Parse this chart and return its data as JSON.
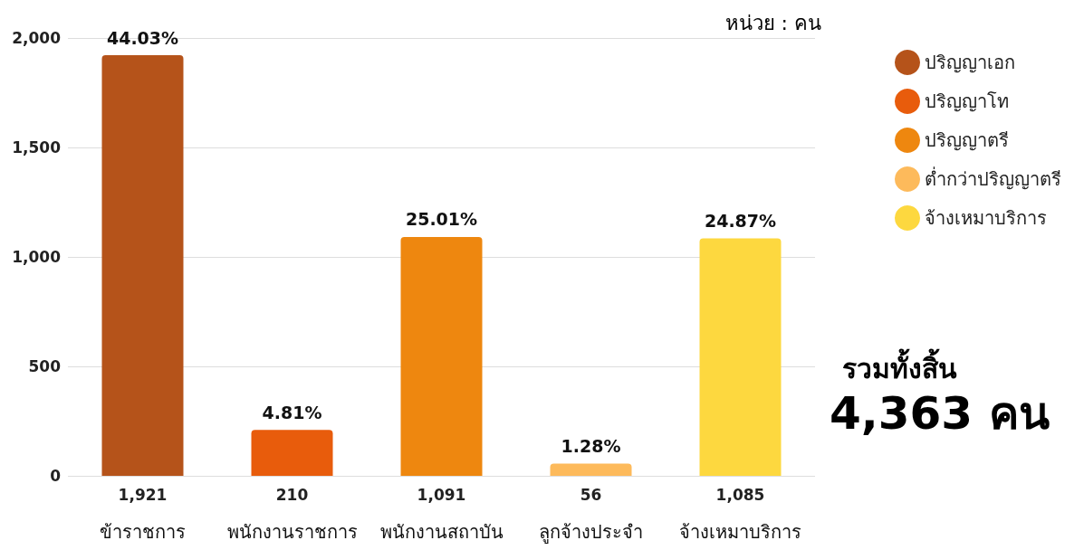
{
  "chart_data": {
    "type": "bar",
    "stacked": true,
    "categories": [
      "ข้าราชการ",
      "พนักงานราชการ",
      "พนักงานสถาบัน",
      "ลูกจ้างประจำ",
      "จ้างเหมาบริการ"
    ],
    "series": [
      {
        "name": "ปริญญาเอก",
        "color": "#b5531a",
        "values": [
          1921,
          null,
          null,
          null,
          null
        ],
        "value_labels": [
          "1,921",
          null,
          null,
          null,
          null
        ]
      },
      {
        "name": "ปริญญาโท",
        "color": "#e85c0c",
        "values": [
          null,
          210,
          null,
          null,
          null
        ],
        "value_labels": [
          null,
          "210",
          null,
          null,
          null
        ]
      },
      {
        "name": "ปริญญาตรี",
        "color": "#ee870f",
        "values": [
          null,
          null,
          1091,
          null,
          null
        ],
        "value_labels": [
          null,
          null,
          "1,091",
          null,
          null
        ]
      },
      {
        "name": "ต่ำกว่าปริญญาตรี",
        "color": "#fdba5b",
        "values": [
          null,
          null,
          null,
          56,
          null
        ],
        "value_labels": [
          null,
          null,
          null,
          "56",
          null
        ]
      },
      {
        "name": "จ้างเหมาบริการ",
        "color": "#fdd83f",
        "values": [
          null,
          null,
          null,
          null,
          1085
        ],
        "value_labels": [
          null,
          null,
          null,
          null,
          "1,085"
        ]
      }
    ],
    "ylim": [
      0,
      2000
    ],
    "yticks": [
      0,
      500,
      {
        "value": 1000,
        "label": "1,000"
      },
      {
        "value": 1500,
        "label": "1,500"
      },
      {
        "value": 2000,
        "label": "2,000"
      }
    ],
    "grid": "y",
    "legend": "right",
    "annotations": [
      {
        "text": "44.03%",
        "x": "ข้าราชการ",
        "y": 1921
      },
      {
        "text": "4.81%",
        "x": "พนักงานราชการ",
        "y": 210
      },
      {
        "text": "25.01%",
        "x": "พนักงานสถาบัน",
        "y": 1091
      },
      {
        "text": "1.28%",
        "x": "ลูกจ้างประจำ",
        "y": 56
      },
      {
        "text": "24.87%",
        "x": "จ้างเหมาบริการ",
        "y": 1085
      },
      "หน่วย : คน",
      "รวมทั้งสิ้น",
      "4,363 คน"
    ]
  }
}
